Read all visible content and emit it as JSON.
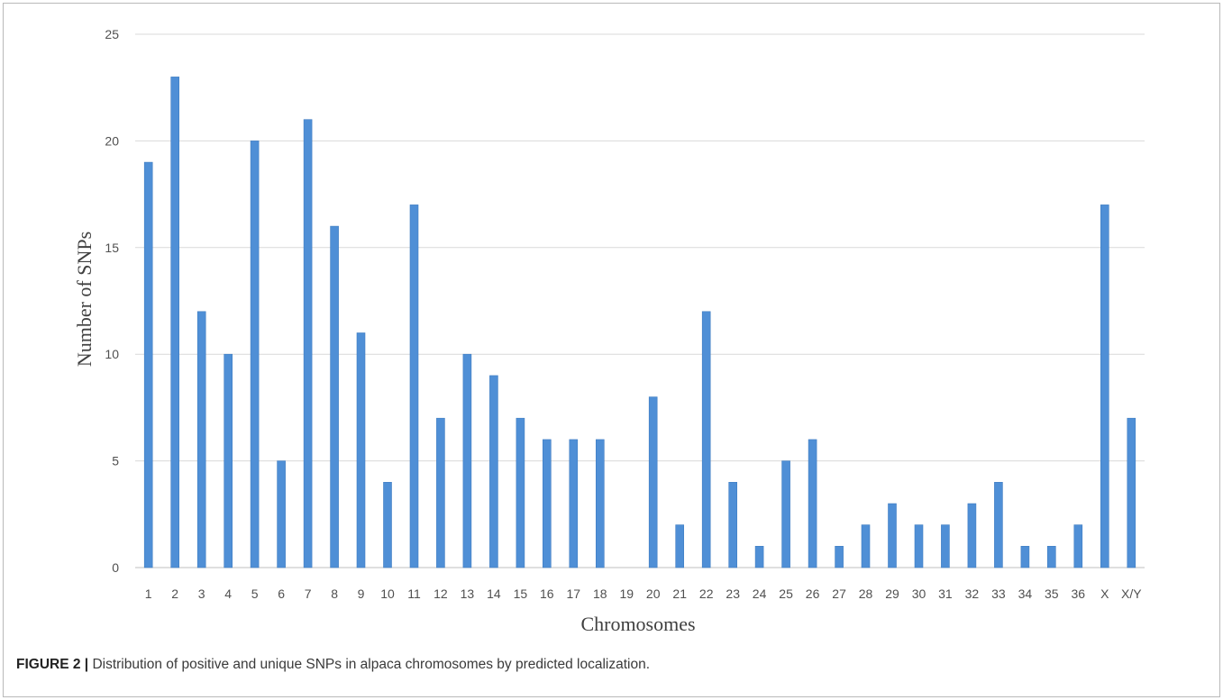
{
  "caption": {
    "label": "FIGURE 2",
    "separator": " | ",
    "text": "Distribution of positive and unique SNPs in alpaca chromosomes by predicted localization."
  },
  "chart_data": {
    "type": "bar",
    "title": "",
    "xlabel": "Chromosomes",
    "ylabel": "Number of SNPs",
    "ylim": [
      0,
      25
    ],
    "yticks": [
      0,
      5,
      10,
      15,
      20,
      25
    ],
    "grid": "horizontal",
    "legend": "none",
    "bar_color": "#4f8fd6",
    "categories": [
      "1",
      "2",
      "3",
      "4",
      "5",
      "6",
      "7",
      "8",
      "9",
      "10",
      "11",
      "12",
      "13",
      "14",
      "15",
      "16",
      "17",
      "18",
      "19",
      "20",
      "21",
      "22",
      "23",
      "24",
      "25",
      "26",
      "27",
      "28",
      "29",
      "30",
      "31",
      "32",
      "33",
      "34",
      "35",
      "36",
      "X",
      "X/Y"
    ],
    "values": [
      19,
      23,
      12,
      10,
      20,
      5,
      21,
      16,
      11,
      4,
      17,
      7,
      10,
      9,
      7,
      6,
      6,
      6,
      0,
      8,
      2,
      12,
      4,
      1,
      5,
      6,
      1,
      2,
      3,
      2,
      2,
      3,
      4,
      1,
      1,
      2,
      17,
      7
    ]
  }
}
